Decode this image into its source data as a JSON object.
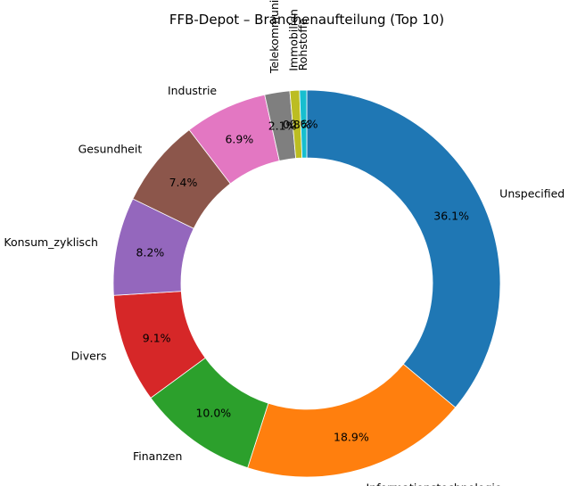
{
  "chart_data": {
    "type": "pie",
    "donut": true,
    "title": "FFB-Depot – Branchenaufteilung (Top 10)",
    "start_angle_deg": 90,
    "direction": "clockwise",
    "categories": [
      "Unspecified",
      "Informationstechnologie",
      "Finanzen",
      "Divers",
      "Konsum_zyklisch",
      "Gesundheit",
      "Industrie",
      "Telekommunikation",
      "Immobilien",
      "Rohstoffe"
    ],
    "values": [
      36.1,
      18.9,
      10.0,
      9.1,
      8.2,
      7.4,
      6.9,
      2.1,
      0.8,
      0.6
    ],
    "value_labels": [
      "36.1%",
      "18.9%",
      "10.0%",
      "9.1%",
      "8.2%",
      "7.4%",
      "6.9%",
      "2.1%",
      "0.8%",
      "0.6%"
    ],
    "colors": [
      "#1f77b4",
      "#ff7f0e",
      "#2ca02c",
      "#d62728",
      "#9467bd",
      "#8c564b",
      "#e377c2",
      "#7f7f7f",
      "#bcbd22",
      "#17becf"
    ],
    "rotated_labels": [
      "Telekommunikation",
      "Immobilien",
      "Rohstoffe"
    ]
  }
}
